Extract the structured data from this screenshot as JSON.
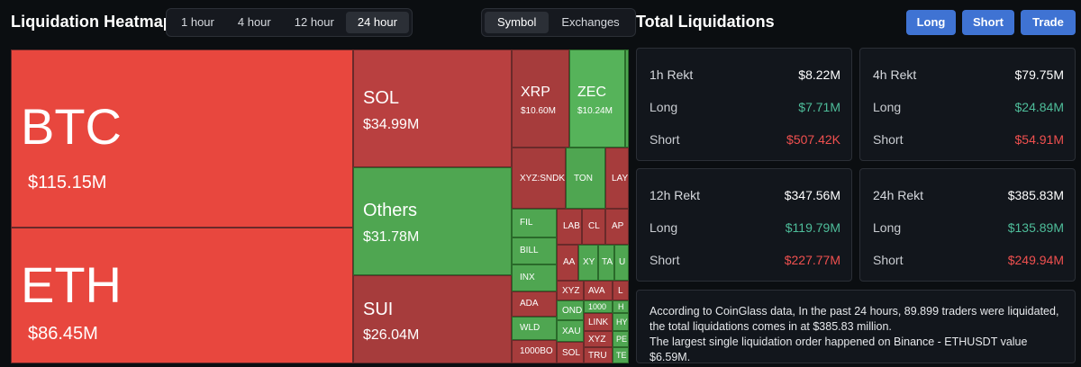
{
  "header": {
    "title": "Liquidation Heatmap",
    "timeframes": [
      "1 hour",
      "4 hour",
      "12 hour",
      "24 hour"
    ],
    "active_timeframe": "24 hour",
    "views": [
      "Symbol",
      "Exchanges"
    ],
    "active_view": "Symbol"
  },
  "totals": {
    "title": "Total Liquidations",
    "buttons": {
      "long": "Long",
      "short": "Short",
      "trade": "Trade"
    }
  },
  "heatmap": {
    "tiles": [
      {
        "symbol": "BTC",
        "value": "$115.15M"
      },
      {
        "symbol": "ETH",
        "value": "$86.45M"
      },
      {
        "symbol": "SOL",
        "value": "$34.99M"
      },
      {
        "symbol": "Others",
        "value": "$31.78M"
      },
      {
        "symbol": "SUI",
        "value": "$26.04M"
      },
      {
        "symbol": "XRP",
        "value": "$10.60M"
      },
      {
        "symbol": "ZEC",
        "value": "$10.24M"
      },
      {
        "symbol": "XYZ:SNDK",
        "value": ""
      },
      {
        "symbol": "TON",
        "value": ""
      },
      {
        "symbol": "LAY",
        "value": ""
      },
      {
        "symbol": "FIL",
        "value": ""
      },
      {
        "symbol": "BILL",
        "value": ""
      },
      {
        "symbol": "INX",
        "value": ""
      },
      {
        "symbol": "ADA",
        "value": ""
      },
      {
        "symbol": "WLD",
        "value": ""
      },
      {
        "symbol": "1000BO",
        "value": ""
      },
      {
        "symbol": "LAB",
        "value": ""
      },
      {
        "symbol": "CL",
        "value": ""
      },
      {
        "symbol": "AP",
        "value": ""
      },
      {
        "symbol": "AA",
        "value": ""
      },
      {
        "symbol": "XY",
        "value": ""
      },
      {
        "symbol": "TA",
        "value": ""
      },
      {
        "symbol": "U",
        "value": ""
      },
      {
        "symbol": "XYZ",
        "value": ""
      },
      {
        "symbol": "AVA",
        "value": ""
      },
      {
        "symbol": "L",
        "value": ""
      },
      {
        "symbol": "OND",
        "value": ""
      },
      {
        "symbol": "1000",
        "value": ""
      },
      {
        "symbol": "H",
        "value": ""
      },
      {
        "symbol": "LINK",
        "value": ""
      },
      {
        "symbol": "HY",
        "value": ""
      },
      {
        "symbol": "XAU",
        "value": ""
      },
      {
        "symbol": "XYZ",
        "value": ""
      },
      {
        "symbol": "PE",
        "value": ""
      },
      {
        "symbol": "SOL",
        "value": ""
      },
      {
        "symbol": "TRU",
        "value": ""
      },
      {
        "symbol": "TE",
        "value": ""
      }
    ]
  },
  "cards": [
    {
      "head": "1h Rekt",
      "total": "$8.22M",
      "long_label": "Long",
      "long": "$7.71M",
      "short_label": "Short",
      "short": "$507.42K"
    },
    {
      "head": "4h Rekt",
      "total": "$79.75M",
      "long_label": "Long",
      "long": "$24.84M",
      "short_label": "Short",
      "short": "$54.91M"
    },
    {
      "head": "12h Rekt",
      "total": "$347.56M",
      "long_label": "Long",
      "long": "$119.79M",
      "short_label": "Short",
      "short": "$227.77M"
    },
    {
      "head": "24h Rekt",
      "total": "$385.83M",
      "long_label": "Long",
      "long": "$135.89M",
      "short_label": "Short",
      "short": "$249.94M"
    }
  ],
  "note": {
    "line1": "According to CoinGlass data, In the past 24 hours, 89.899 traders were liquidated, the total liquidations comes in at $385.83 million.",
    "line2": "The largest single liquidation order happened on Binance - ETHUSDT value $6.59M."
  }
}
